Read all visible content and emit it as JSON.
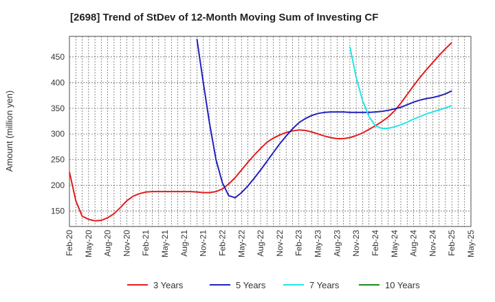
{
  "chart_data": {
    "type": "line",
    "title": "[2698]  Trend of StDev of 12-Month Moving Sum of Investing CF",
    "ylabel": "Amount (million yen)",
    "xlabel": "",
    "ylim": [
      120,
      490
    ],
    "yticks": [
      150,
      200,
      250,
      300,
      350,
      400,
      450
    ],
    "xlim": [
      "2020-02",
      "2025-05"
    ],
    "xticks": [
      "Feb-20",
      "May-20",
      "Aug-20",
      "Nov-20",
      "Feb-21",
      "May-21",
      "Aug-21",
      "Nov-21",
      "Feb-22",
      "May-22",
      "Aug-22",
      "Nov-22",
      "Feb-23",
      "May-23",
      "Aug-23",
      "Nov-23",
      "Feb-24",
      "May-24",
      "Aug-24",
      "Nov-24",
      "Feb-25",
      "May-25"
    ],
    "grid": true,
    "legend_position": "bottom",
    "series": [
      {
        "name": "3 Years",
        "color": "#e31a1c",
        "x": [
          "2020-02",
          "2020-03",
          "2020-04",
          "2020-05",
          "2020-06",
          "2020-07",
          "2020-08",
          "2020-09",
          "2020-10",
          "2020-11",
          "2020-12",
          "2021-01",
          "2021-02",
          "2021-03",
          "2021-04",
          "2021-05",
          "2021-06",
          "2021-07",
          "2021-08",
          "2021-09",
          "2021-10",
          "2021-11",
          "2021-12",
          "2022-01",
          "2022-02",
          "2022-03",
          "2022-04",
          "2022-05",
          "2022-06",
          "2022-07",
          "2022-08",
          "2022-09",
          "2022-10",
          "2022-11",
          "2022-12",
          "2023-01",
          "2023-02",
          "2023-03",
          "2023-04",
          "2023-05",
          "2023-06",
          "2023-07",
          "2023-08",
          "2023-09",
          "2023-10",
          "2023-11",
          "2023-12",
          "2024-01",
          "2024-02",
          "2024-03",
          "2024-04",
          "2024-05",
          "2024-06",
          "2024-07",
          "2024-08",
          "2024-09",
          "2024-10",
          "2024-11",
          "2024-12",
          "2025-01",
          "2025-02"
        ],
        "values": [
          226,
          170,
          140,
          134,
          131,
          132,
          137,
          145,
          157,
          170,
          179,
          184,
          187,
          188,
          188,
          188,
          188,
          188,
          188,
          188,
          187,
          186,
          186,
          188,
          193,
          203,
          215,
          230,
          245,
          259,
          272,
          284,
          292,
          298,
          303,
          306,
          308,
          307,
          304,
          300,
          296,
          293,
          291,
          291,
          293,
          297,
          302,
          309,
          316,
          324,
          333,
          345,
          360,
          377,
          394,
          410,
          425,
          439,
          453,
          466,
          478
        ]
      },
      {
        "name": "5 Years",
        "color": "#1f1fbf",
        "x": [
          "2021-10",
          "2021-11",
          "2021-12",
          "2022-01",
          "2022-02",
          "2022-03",
          "2022-04",
          "2022-05",
          "2022-06",
          "2022-07",
          "2022-08",
          "2022-09",
          "2022-10",
          "2022-11",
          "2022-12",
          "2023-01",
          "2023-02",
          "2023-03",
          "2023-04",
          "2023-05",
          "2023-06",
          "2023-07",
          "2023-08",
          "2023-09",
          "2023-10",
          "2023-11",
          "2023-12",
          "2024-01",
          "2024-02",
          "2024-03",
          "2024-04",
          "2024-05",
          "2024-06",
          "2024-07",
          "2024-08",
          "2024-09",
          "2024-10",
          "2024-11",
          "2024-12",
          "2025-01",
          "2025-02"
        ],
        "values": [
          485,
          400,
          320,
          250,
          205,
          180,
          176,
          186,
          199,
          214,
          230,
          247,
          264,
          281,
          296,
          310,
          322,
          330,
          336,
          340,
          342,
          343,
          343,
          343,
          342,
          342,
          342,
          342,
          343,
          344,
          346,
          349,
          352,
          357,
          362,
          366,
          369,
          371,
          374,
          378,
          384
        ]
      },
      {
        "name": "7 Years",
        "color": "#1fe5e5",
        "x": [
          "2023-10",
          "2023-11",
          "2023-12",
          "2024-01",
          "2024-02",
          "2024-03",
          "2024-04",
          "2024-05",
          "2024-06",
          "2024-07",
          "2024-08",
          "2024-09",
          "2024-10",
          "2024-11",
          "2024-12",
          "2025-01",
          "2025-02"
        ],
        "values": [
          470,
          410,
          365,
          334,
          316,
          311,
          311,
          314,
          318,
          323,
          329,
          334,
          339,
          343,
          347,
          351,
          355
        ]
      },
      {
        "name": "10 Years",
        "color": "#1a8a1a",
        "x": [],
        "values": []
      }
    ]
  }
}
